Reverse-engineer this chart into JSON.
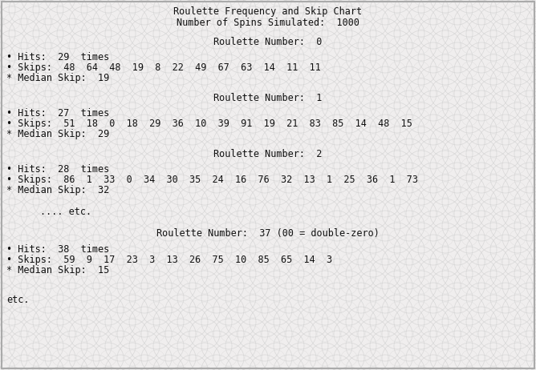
{
  "title_line1": "Roulette Frequency and Skip Chart",
  "title_line2": "Number of Spins Simulated:  1000",
  "bg_color": "#f0eeee",
  "text_color": "#111111",
  "font_family": "monospace",
  "sections": [
    {
      "header": "Roulette Number:  0",
      "hits": "Hits:  29  times",
      "skips": "Skips:  48  64  48  19  8  22  49  67  63  14  11  11",
      "median": "Median Skip:  19"
    },
    {
      "header": "Roulette Number:  1",
      "hits": "Hits:  27  times",
      "skips": "Skips:  51  18  0  18  29  36  10  39  91  19  21  83  85  14  48  15",
      "median": "Median Skip:  29"
    },
    {
      "header": "Roulette Number:  2",
      "hits": "Hits:  28  times",
      "skips": "Skips:  86  1  33  0  34  30  35  24  16  76  32  13  1  25  36  1  73",
      "median": "Median Skip:  32"
    },
    {
      "header": ".... etc."
    },
    {
      "header": "Roulette Number:  37 (00 = double-zero)",
      "hits": "Hits:  38  times",
      "skips": "Skips:  59  9  17  23  3  13  26  75  10  85  65  14  3",
      "median": "Median Skip:  15"
    }
  ],
  "footer": "etc.",
  "font_size": 8.5,
  "bullet_char": "•",
  "star_char": "*",
  "border_color": "#aaaaaa",
  "pattern_color": "#cccccc",
  "pattern_alpha": 0.55
}
